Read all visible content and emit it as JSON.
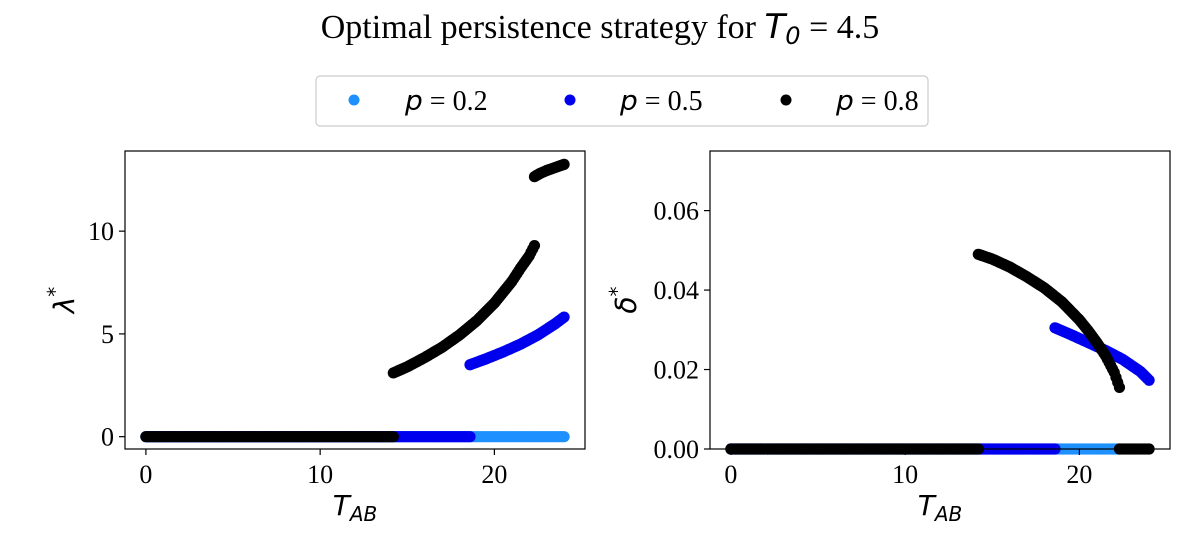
{
  "title": {
    "prefix": "Optimal persistence strategy for ",
    "symbol": "T",
    "subscript": "0",
    "suffix": " = 4.5"
  },
  "legend": {
    "placement": "top-center",
    "entries": [
      {
        "symbol": "p",
        "text": " = 0.2",
        "color": "#1e90ff"
      },
      {
        "symbol": "p",
        "text": " = 0.5",
        "color": "#0000ee"
      },
      {
        "symbol": "p",
        "text": " = 0.8",
        "color": "#000000"
      }
    ]
  },
  "chart_data": [
    {
      "type": "scatter",
      "panel": "left",
      "xlabel": {
        "main": "T",
        "sub": "AB"
      },
      "ylabel": {
        "main": "λ",
        "sup": "*"
      },
      "xlim": [
        -1.2,
        25.2
      ],
      "ylim": [
        -0.6,
        13.9
      ],
      "xticks": [
        0,
        10,
        20
      ],
      "yticks": [
        0,
        5,
        10
      ],
      "grid": false,
      "series": [
        {
          "name": "p = 0.2",
          "color": "#1e90ff",
          "segments": [
            {
              "x": [
                0,
                24
              ],
              "y": [
                0,
                0
              ]
            }
          ]
        },
        {
          "name": "p = 0.5",
          "color": "#0000ee",
          "segments": [
            {
              "x": [
                0,
                18.6
              ],
              "y": [
                0,
                0
              ]
            },
            {
              "x": [
                18.6,
                19.5,
                20.5,
                21.5,
                22.5,
                23.5,
                24.0
              ],
              "y": [
                3.5,
                3.78,
                4.12,
                4.5,
                4.95,
                5.5,
                5.82
              ]
            }
          ]
        },
        {
          "name": "p = 0.8",
          "color": "#000000",
          "segments": [
            {
              "x": [
                0,
                14.2
              ],
              "y": [
                0,
                0
              ]
            },
            {
              "x": [
                14.2,
                15.0,
                16.0,
                17.0,
                18.0,
                19.0,
                20.0,
                21.0,
                21.5,
                22.0,
                22.3
              ],
              "y": [
                3.1,
                3.4,
                3.85,
                4.35,
                4.95,
                5.65,
                6.5,
                7.55,
                8.2,
                8.8,
                9.3
              ]
            },
            {
              "x": [
                22.3,
                22.6,
                23.0,
                23.5,
                24.0
              ],
              "y": [
                12.65,
                12.8,
                12.95,
                13.1,
                13.25
              ]
            }
          ]
        }
      ]
    },
    {
      "type": "scatter",
      "panel": "right",
      "xlabel": {
        "main": "T",
        "sub": "AB"
      },
      "ylabel": {
        "main": "δ",
        "sup": "*"
      },
      "xlim": [
        -1.2,
        25.2
      ],
      "ylim": [
        0.0,
        0.075
      ],
      "xticks": [
        0,
        10,
        20
      ],
      "yticks": [
        0.0,
        0.02,
        0.04,
        0.06
      ],
      "ytick_labels": [
        "0.00",
        "0.02",
        "0.04",
        "0.06"
      ],
      "grid": false,
      "series": [
        {
          "name": "p = 0.2",
          "color": "#1e90ff",
          "segments": [
            {
              "x": [
                0,
                22.3
              ],
              "y": [
                0,
                0
              ]
            }
          ]
        },
        {
          "name": "p = 0.5",
          "color": "#0000ee",
          "segments": [
            {
              "x": [
                0,
                18.6
              ],
              "y": [
                0,
                0
              ]
            },
            {
              "x": [
                18.6,
                19.5,
                20.5,
                21.5,
                22.5,
                23.5,
                24.0
              ],
              "y": [
                0.0305,
                0.0288,
                0.0268,
                0.0248,
                0.0225,
                0.0195,
                0.0173
              ]
            }
          ]
        },
        {
          "name": "p = 0.8",
          "color": "#000000",
          "segments": [
            {
              "x": [
                0,
                14.2
              ],
              "y": [
                0,
                0
              ]
            },
            {
              "x": [
                14.2,
                15.0,
                16.0,
                17.0,
                18.0,
                19.0,
                20.0,
                20.5,
                21.0,
                21.5,
                22.0,
                22.3
              ],
              "y": [
                0.049,
                0.0478,
                0.0458,
                0.0433,
                0.0405,
                0.037,
                0.0325,
                0.0298,
                0.0268,
                0.0235,
                0.0193,
                0.0155
              ]
            },
            {
              "x": [
                22.3,
                24.0
              ],
              "y": [
                0,
                0
              ]
            }
          ]
        }
      ]
    }
  ]
}
